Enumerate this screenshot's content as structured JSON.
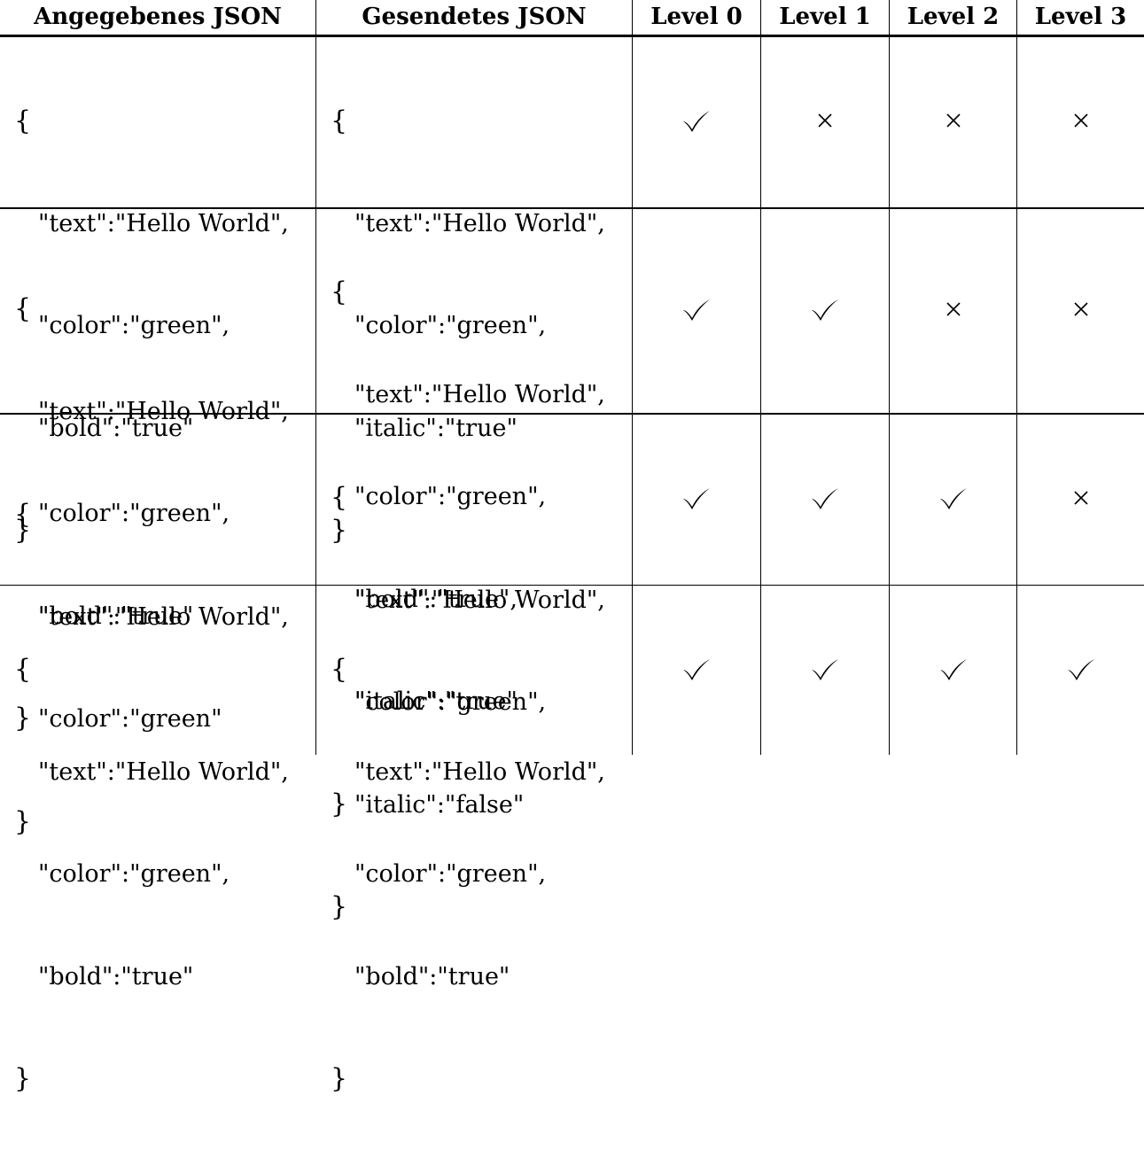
{
  "headers": [
    "Angegebenes JSON",
    "Gesendetes JSON",
    "Level 0",
    "Level 1",
    "Level 2",
    "Level 3"
  ],
  "rows": [
    {
      "given": [
        "{",
        "\"text\":\"Hello World\",",
        "\"color\":\"green\",",
        "\"bold\":\"true\"",
        "}"
      ],
      "sent": [
        "{",
        "\"text\":\"Hello World\",",
        "\"color\":\"green\",",
        "\"italic\":\"true\"",
        "}"
      ],
      "levels": [
        "check",
        "cross",
        "cross",
        "cross"
      ]
    },
    {
      "given": [
        "{",
        "\"text\":\"Hello World\",",
        "\"color\":\"green\",",
        "\"bold\":\"true\"",
        "}"
      ],
      "sent": [
        "{",
        "\"text\":\"Hello World\",",
        "\"color\":\"green\",",
        "\"bold\":\"true\",",
        "\"italic\":\"true\"",
        "}"
      ],
      "levels": [
        "check",
        "check",
        "cross",
        "cross"
      ]
    },
    {
      "given": [
        "{",
        "\"text\":\"Hello World\",",
        "\"color\":\"green\"",
        "}"
      ],
      "sent": [
        "{",
        "\"text\":\"Hello World\",",
        "\"color\":\"green\",",
        "\"italic\":\"false\"",
        "}"
      ],
      "levels": [
        "check",
        "check",
        "check",
        "cross"
      ]
    },
    {
      "given": [
        "{",
        "\"text\":\"Hello World\",",
        "\"color\":\"green\",",
        "\"bold\":\"true\"",
        "}"
      ],
      "sent": [
        "{",
        "\"text\":\"Hello World\",",
        "\"color\":\"green\",",
        "\"bold\":\"true\"",
        "}"
      ],
      "levels": [
        "check",
        "check",
        "check",
        "check"
      ]
    }
  ]
}
